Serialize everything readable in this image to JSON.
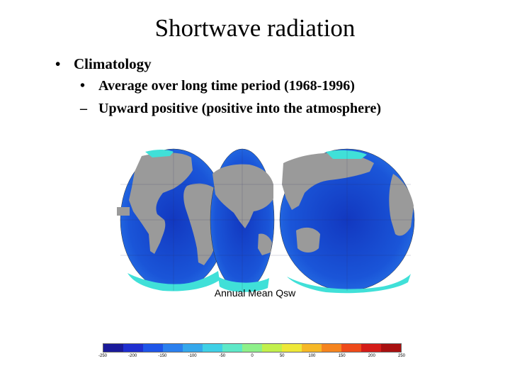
{
  "slide": {
    "title": "Shortwave radiation",
    "bullets": [
      {
        "marker": "•",
        "text": "Climatology"
      },
      {
        "marker": "•",
        "text": "Average over long time period (1968-1996)"
      },
      {
        "marker": "–",
        "text": "Upward positive (positive into the atmosphere)"
      }
    ]
  },
  "figure": {
    "caption": "Annual Mean Qsw",
    "colorbar": {
      "min": -250,
      "max": 250,
      "ticks": [
        "-250",
        "-200",
        "-150",
        "-100",
        "-50",
        "0",
        "50",
        "100",
        "150",
        "200",
        "250"
      ],
      "colors": [
        "#1a1a9a",
        "#1f2fd0",
        "#1e55e8",
        "#2b80ee",
        "#35a8ec",
        "#3fd0e6",
        "#5ee8c8",
        "#8ef08a",
        "#c2f04c",
        "#eee838",
        "#f6b826",
        "#f5841e",
        "#ee4a1a",
        "#d41c18",
        "#a81010"
      ]
    },
    "colors": {
      "ocean": "#1848d0",
      "land": "#9a9a9a",
      "ice": "#40e0d8"
    }
  }
}
